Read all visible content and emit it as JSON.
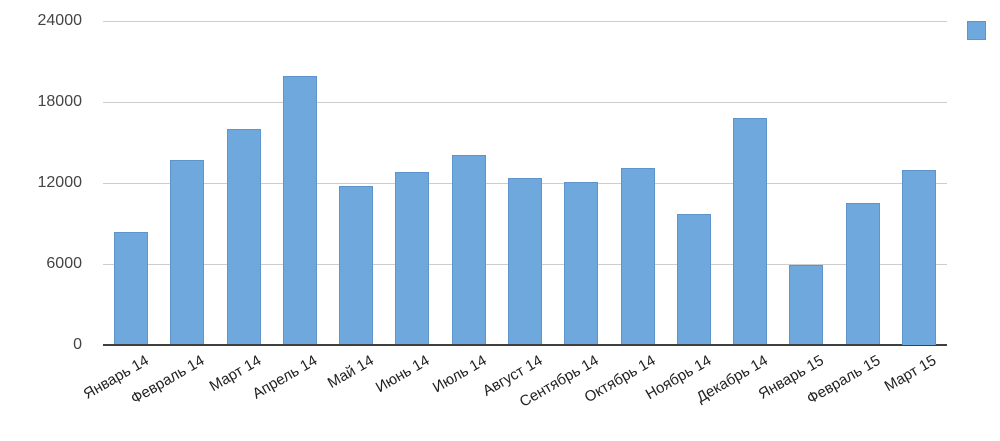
{
  "chart_data": {
    "type": "bar",
    "title": "",
    "xlabel": "",
    "ylabel": "",
    "categories": [
      "Январь 14",
      "Февраль 14",
      "Март 14",
      "Апрель 14",
      "Май 14",
      "Июнь 14",
      "Июль 14",
      "Август 14",
      "Сентябрь 14",
      "Октябрь 14",
      "Ноябрь 14",
      "Декабрь 14",
      "Январь 15",
      "Февраль 15",
      "Март 15"
    ],
    "series": [
      {
        "name": "",
        "values": [
          8400,
          13700,
          16000,
          19900,
          11800,
          12800,
          14100,
          12400,
          12100,
          13100,
          9700,
          16800,
          5900,
          10500,
          13000
        ]
      }
    ],
    "ylim": [
      0,
      24000
    ],
    "yticks": [
      24000,
      18000,
      12000,
      6000,
      0
    ],
    "grid": true,
    "legend_position": "top-right",
    "colors": {
      "bar": "#6FA8DC",
      "bar_border": "#5E93CC",
      "grid": "#CDCDCD",
      "axis": "#3F3F3F",
      "y_tick_label": "#444444",
      "x_tick_label": "#222222",
      "background": "#FFFFFF"
    }
  },
  "legend": {
    "swatch_color": "#6FA8DC",
    "label": ""
  }
}
